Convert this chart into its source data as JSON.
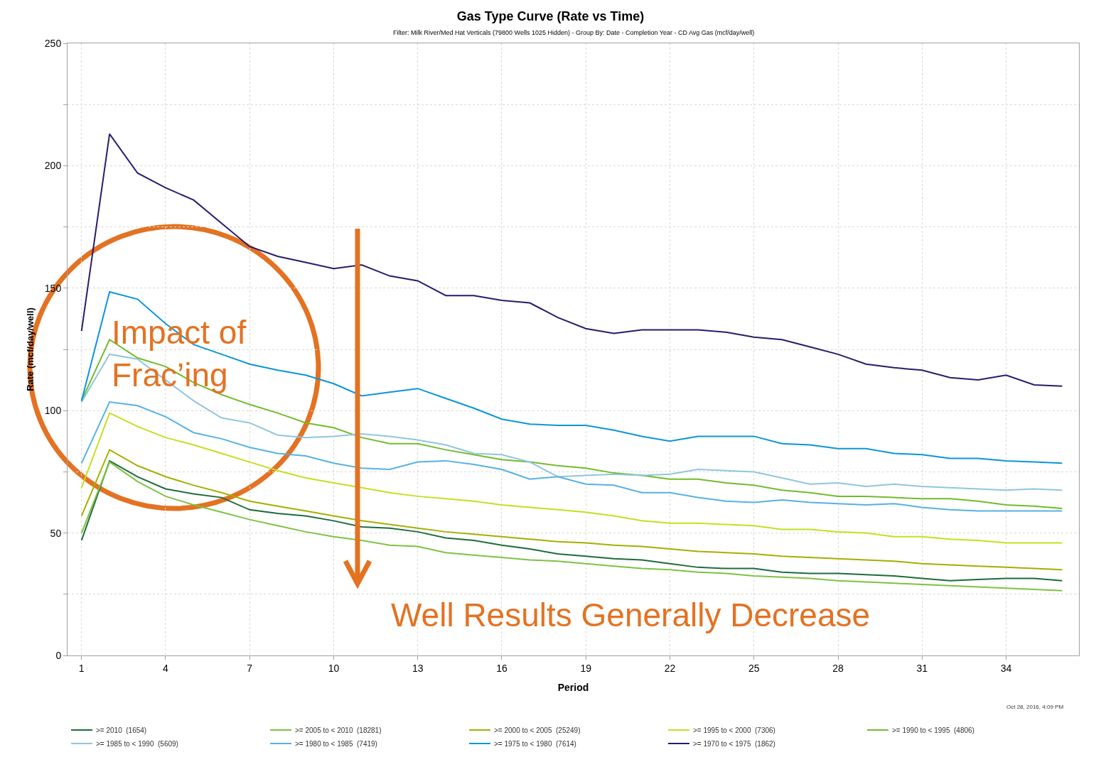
{
  "chart_data": {
    "type": "line",
    "title": "Gas Type Curve (Rate vs Time)",
    "subtitle": "Filter: Milk River/Med Hat Verticals (79800 Wells 1025 Hidden) - Group By: Date - Completion Year - CD Avg Gas (mcf/day/well)",
    "xlabel": "Period",
    "ylabel": "Rate (mcf/day/well)",
    "x": [
      1,
      2,
      3,
      4,
      5,
      6,
      7,
      8,
      9,
      10,
      11,
      12,
      13,
      14,
      15,
      16,
      17,
      18,
      19,
      20,
      21,
      22,
      23,
      24,
      25,
      26,
      27,
      28,
      29,
      30,
      31,
      32,
      33,
      34,
      35,
      36
    ],
    "series": [
      {
        "name": ">= 2010  (1654)",
        "color": "#1e6b3c",
        "values": [
          47,
          79.5,
          73,
          68,
          66,
          64.5,
          59.5,
          58,
          57,
          55,
          52.5,
          52,
          50.5,
          48,
          47,
          45,
          43.5,
          41.5,
          40.5,
          39.5,
          39,
          37.5,
          36,
          35.5,
          35.5,
          34,
          33.5,
          33.5,
          33,
          32.5,
          31.5,
          30.5,
          31,
          31.5,
          31.5,
          30.5
        ]
      },
      {
        "name": ">= 2005 to < 2010  (18281)",
        "color": "#7dc242",
        "values": [
          50,
          79,
          71,
          65,
          61.5,
          58.5,
          55.5,
          53,
          50.5,
          48.5,
          47,
          45,
          44.5,
          42,
          41,
          40,
          39,
          38.5,
          37.5,
          36.5,
          35.5,
          35,
          34,
          33.5,
          32.5,
          32,
          31.5,
          30.5,
          30,
          29.5,
          29,
          28.5,
          28,
          27.5,
          27,
          26.5
        ]
      },
      {
        "name": ">= 2000 to < 2005  (25249)",
        "color": "#a2b000",
        "values": [
          57,
          84,
          77.5,
          73,
          69.5,
          66.5,
          63,
          61,
          59,
          57,
          55,
          53.5,
          52,
          50.5,
          49.5,
          48.5,
          47.5,
          46.5,
          46,
          45,
          44.5,
          43.5,
          42.5,
          42,
          41.5,
          40.5,
          40,
          39.5,
          39,
          38.5,
          37.5,
          37,
          36.5,
          36,
          35.5,
          35
        ]
      },
      {
        "name": ">= 1995 to < 2000  (7306)",
        "color": "#c6df1f",
        "values": [
          68.5,
          99,
          93.5,
          89,
          86,
          82.5,
          79,
          75.5,
          72.5,
          70.5,
          68.5,
          66.5,
          65,
          64,
          63,
          61.5,
          60.5,
          59.5,
          58.5,
          57,
          55,
          54,
          54,
          53.5,
          53,
          51.5,
          51.5,
          50.5,
          50,
          48.5,
          48.5,
          47.5,
          47,
          46,
          46,
          46
        ]
      },
      {
        "name": ">= 1990 to < 1995  (4806)",
        "color": "#72bb2c",
        "values": [
          104,
          129,
          121.5,
          118,
          111.5,
          106.5,
          102.5,
          99,
          95,
          93,
          89,
          86.5,
          86.5,
          84,
          82,
          80,
          79,
          77.5,
          76.5,
          74.5,
          73.5,
          72,
          72,
          70.5,
          69.5,
          67.5,
          66.5,
          65,
          65,
          64.5,
          64,
          64,
          63,
          61.5,
          61,
          60
        ]
      },
      {
        "name": ">= 1985 to < 1990  (5609)",
        "color": "#90c6de",
        "values": [
          103.5,
          123,
          121,
          112.5,
          104,
          97,
          95,
          90,
          89,
          89.5,
          90.5,
          89.5,
          88,
          86,
          82.5,
          82,
          79,
          73,
          73.5,
          74,
          73.5,
          74,
          76,
          75.5,
          75,
          72.5,
          70,
          70.5,
          69,
          70,
          69,
          68.5,
          68,
          67.5,
          68,
          67.5
        ]
      },
      {
        "name": ">= 1980 to < 1985  (7419)",
        "color": "#56b1e3",
        "values": [
          78.5,
          103.5,
          102,
          97.5,
          91,
          88.5,
          85,
          82.5,
          81.5,
          78.5,
          76.5,
          76,
          79,
          79.5,
          78,
          76,
          72,
          73,
          70,
          69.5,
          66.5,
          66.5,
          64.5,
          63,
          62.5,
          63.5,
          62.5,
          62,
          61.5,
          62,
          60.5,
          59.5,
          59,
          59,
          59,
          59
        ]
      },
      {
        "name": ">= 1975 to < 1980  (7614)",
        "color": "#0a95da",
        "values": [
          104,
          148.5,
          145.5,
          135.5,
          127,
          123,
          119,
          116.5,
          114.5,
          111,
          106,
          107.5,
          109,
          105,
          101,
          96.5,
          94.5,
          94,
          94,
          92,
          89.5,
          87.5,
          89.5,
          89.5,
          89.5,
          86.5,
          86,
          84.5,
          84.5,
          82.5,
          82,
          80.5,
          80.5,
          79.5,
          79,
          78.5
        ]
      },
      {
        "name": ">= 1970 to < 1975  (1862)",
        "color": "#2b1a6b",
        "values": [
          132.5,
          213,
          197,
          191,
          186,
          176.5,
          167,
          163,
          160.5,
          158,
          159.5,
          155,
          153,
          147,
          147,
          145,
          144,
          138,
          133.5,
          131.5,
          133,
          133,
          133,
          132,
          130,
          129,
          126,
          123,
          119,
          117.5,
          116.5,
          113.5,
          112.5,
          114.5,
          110.5,
          110
        ]
      }
    ],
    "xlim": [
      0.5,
      36.6
    ],
    "xticks": [
      1,
      4,
      7,
      10,
      13,
      16,
      19,
      22,
      25,
      28,
      31,
      34
    ],
    "ylim": [
      0,
      250
    ],
    "yticks": [
      0,
      {
        "value": 25,
        "label": null
      },
      50,
      {
        "value": 75,
        "label": null
      },
      100,
      {
        "value": 125,
        "label": null
      },
      150,
      {
        "value": 175,
        "label": null
      },
      200,
      {
        "value": 225,
        "label": null
      },
      250
    ],
    "grid": true,
    "legend": "bottom",
    "marker": "none",
    "line_style": "solid",
    "annotations": [
      "Impact of\nFrac’ing",
      "Well Results Generally Decrease",
      "Oct 28, 2016, 4:09 PM"
    ]
  }
}
